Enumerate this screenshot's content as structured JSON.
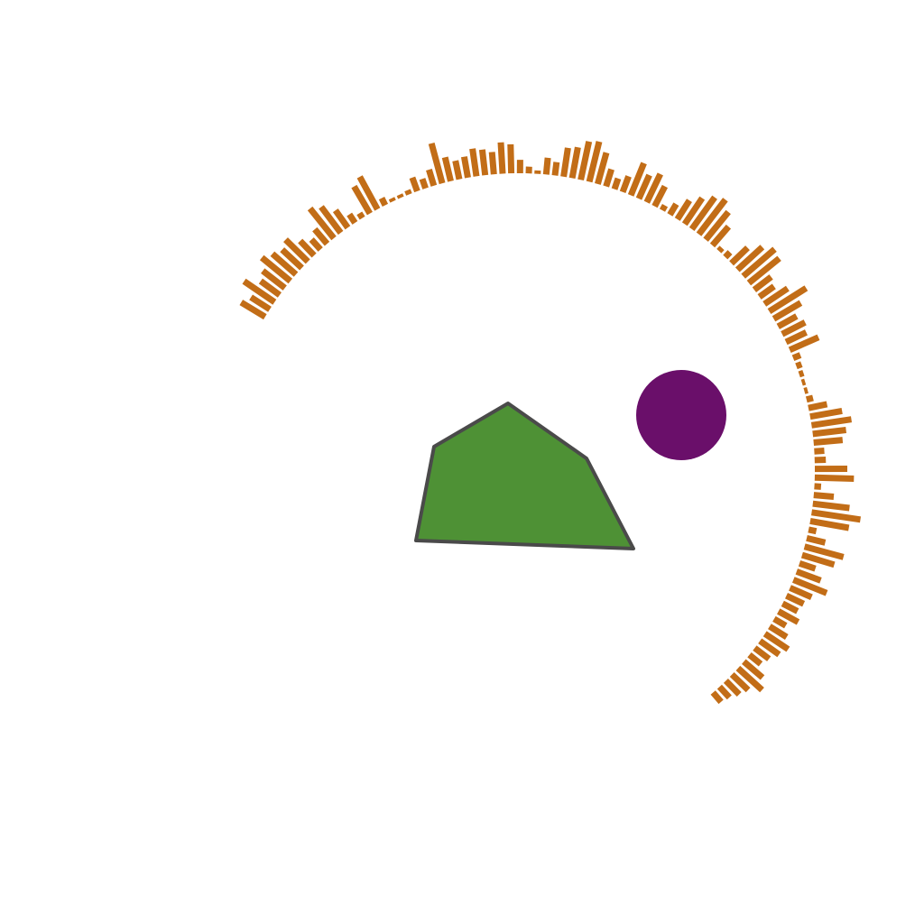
{
  "scene": {
    "background": "#ffffff",
    "radial_bars": {
      "color": "#c26d17",
      "start_angle_deg": 221,
      "end_angle_deg": 419,
      "lengths": [
        0.22,
        0.26,
        0.34,
        0.4,
        0.58,
        0.44,
        0.26,
        0.32,
        0.42,
        0.5,
        0.36,
        0.24,
        0.4,
        0.3,
        0.34,
        0.42,
        0.64,
        0.46,
        0.3,
        0.6,
        0.72,
        0.34,
        0.14,
        0.7,
        0.88,
        0.66,
        0.36,
        0.12,
        0.7,
        0.58,
        0.2,
        0.18,
        0.52,
        0.6,
        0.72,
        0.58,
        0.34,
        0.12,
        0.06,
        0.06,
        0.08,
        0.1,
        0.14,
        0.56,
        0.4,
        0.46,
        0.38,
        0.56,
        0.78,
        0.5,
        0.32,
        0.38,
        0.7,
        0.74,
        0.6,
        0.4,
        0.12,
        0.08,
        0.44,
        0.64,
        0.78,
        0.7,
        0.56,
        0.4,
        0.22,
        0.1,
        0.4,
        0.56,
        0.46,
        0.62,
        0.3,
        0.2,
        0.32,
        0.58,
        0.74,
        0.7,
        0.56,
        0.52,
        0.24,
        0.3,
        0.06,
        0.12,
        0.24,
        0.52,
        0.56,
        0.4,
        0.46,
        0.5,
        0.38,
        0.34,
        0.44,
        0.74,
        0.3,
        0.18,
        0.26,
        0.08,
        0.06,
        0.06,
        0.14,
        0.66,
        0.56,
        0.1,
        0.18,
        0.38,
        0.58,
        0.68,
        0.34,
        0.24,
        0.36,
        0.56,
        0.48,
        0.56,
        0.66,
        0.5,
        0.42,
        0.66,
        0.4,
        0.5
      ]
    },
    "polygon": {
      "fill": "#4e9135",
      "stroke": "#4a4a4a"
    },
    "circle": {
      "fill": "#6a0f6a"
    }
  }
}
